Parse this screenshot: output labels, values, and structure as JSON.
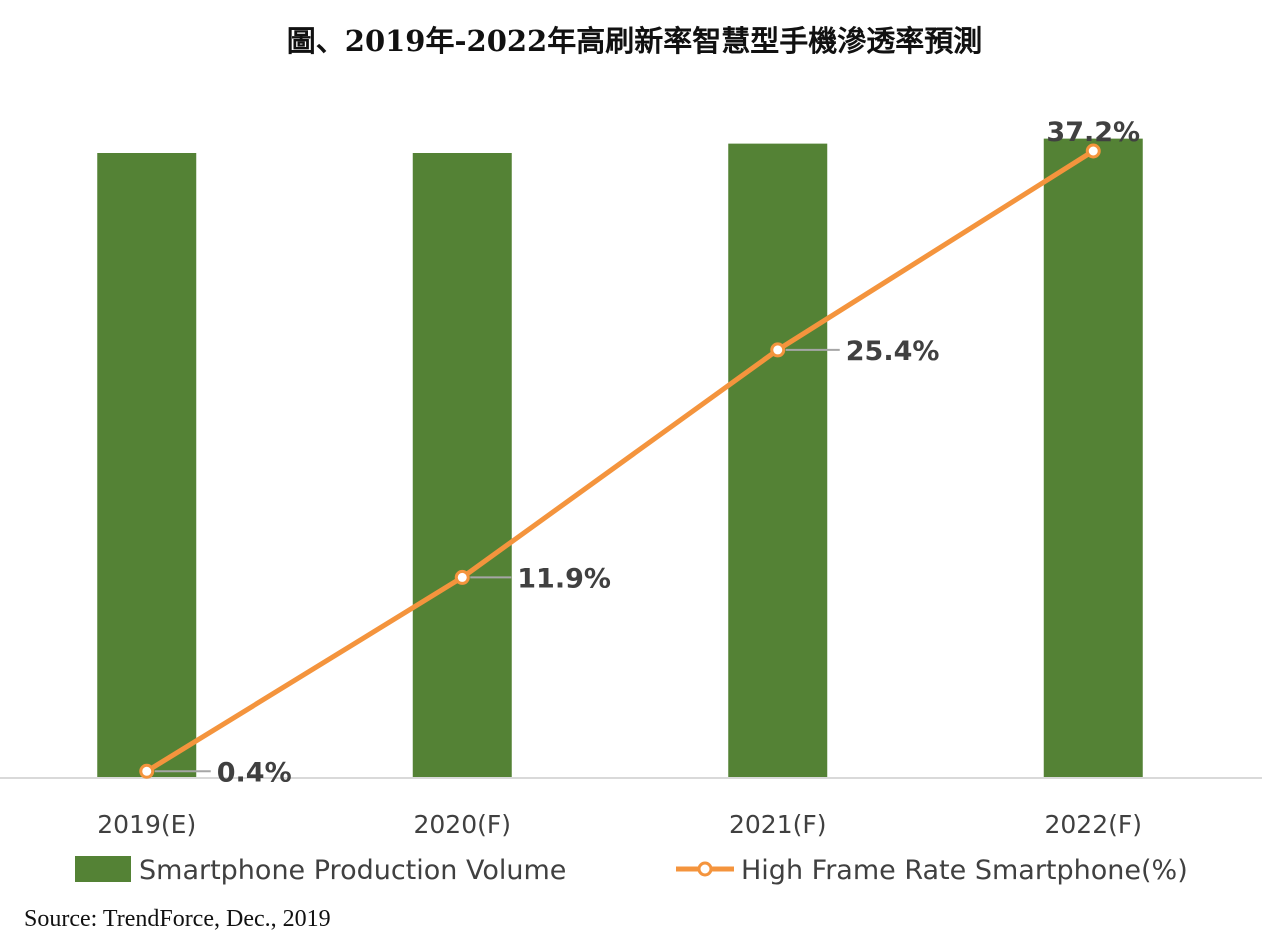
{
  "chart_data": {
    "type": "bar+line",
    "title": "圖、2019年-2022年高刷新率智慧型手機滲透率預測",
    "categories": [
      "2019(E)",
      "2020(F)",
      "2021(F)",
      "2022(F)"
    ],
    "series": [
      {
        "name": "Smartphone Production Volume",
        "type": "bar",
        "color": "#548235",
        "values": [
          100,
          100,
          101.5,
          102.3
        ]
      },
      {
        "name": "High Frame Rate Smartphone(%)",
        "type": "line",
        "color": "#F4943D",
        "values": [
          0.4,
          11.9,
          25.4,
          37.2
        ],
        "labels": [
          "0.4%",
          "11.9%",
          "25.4%",
          "37.2%"
        ]
      }
    ],
    "grid": false,
    "legend": "bottom",
    "source": "Source: TrendForce, Dec., 2019"
  }
}
